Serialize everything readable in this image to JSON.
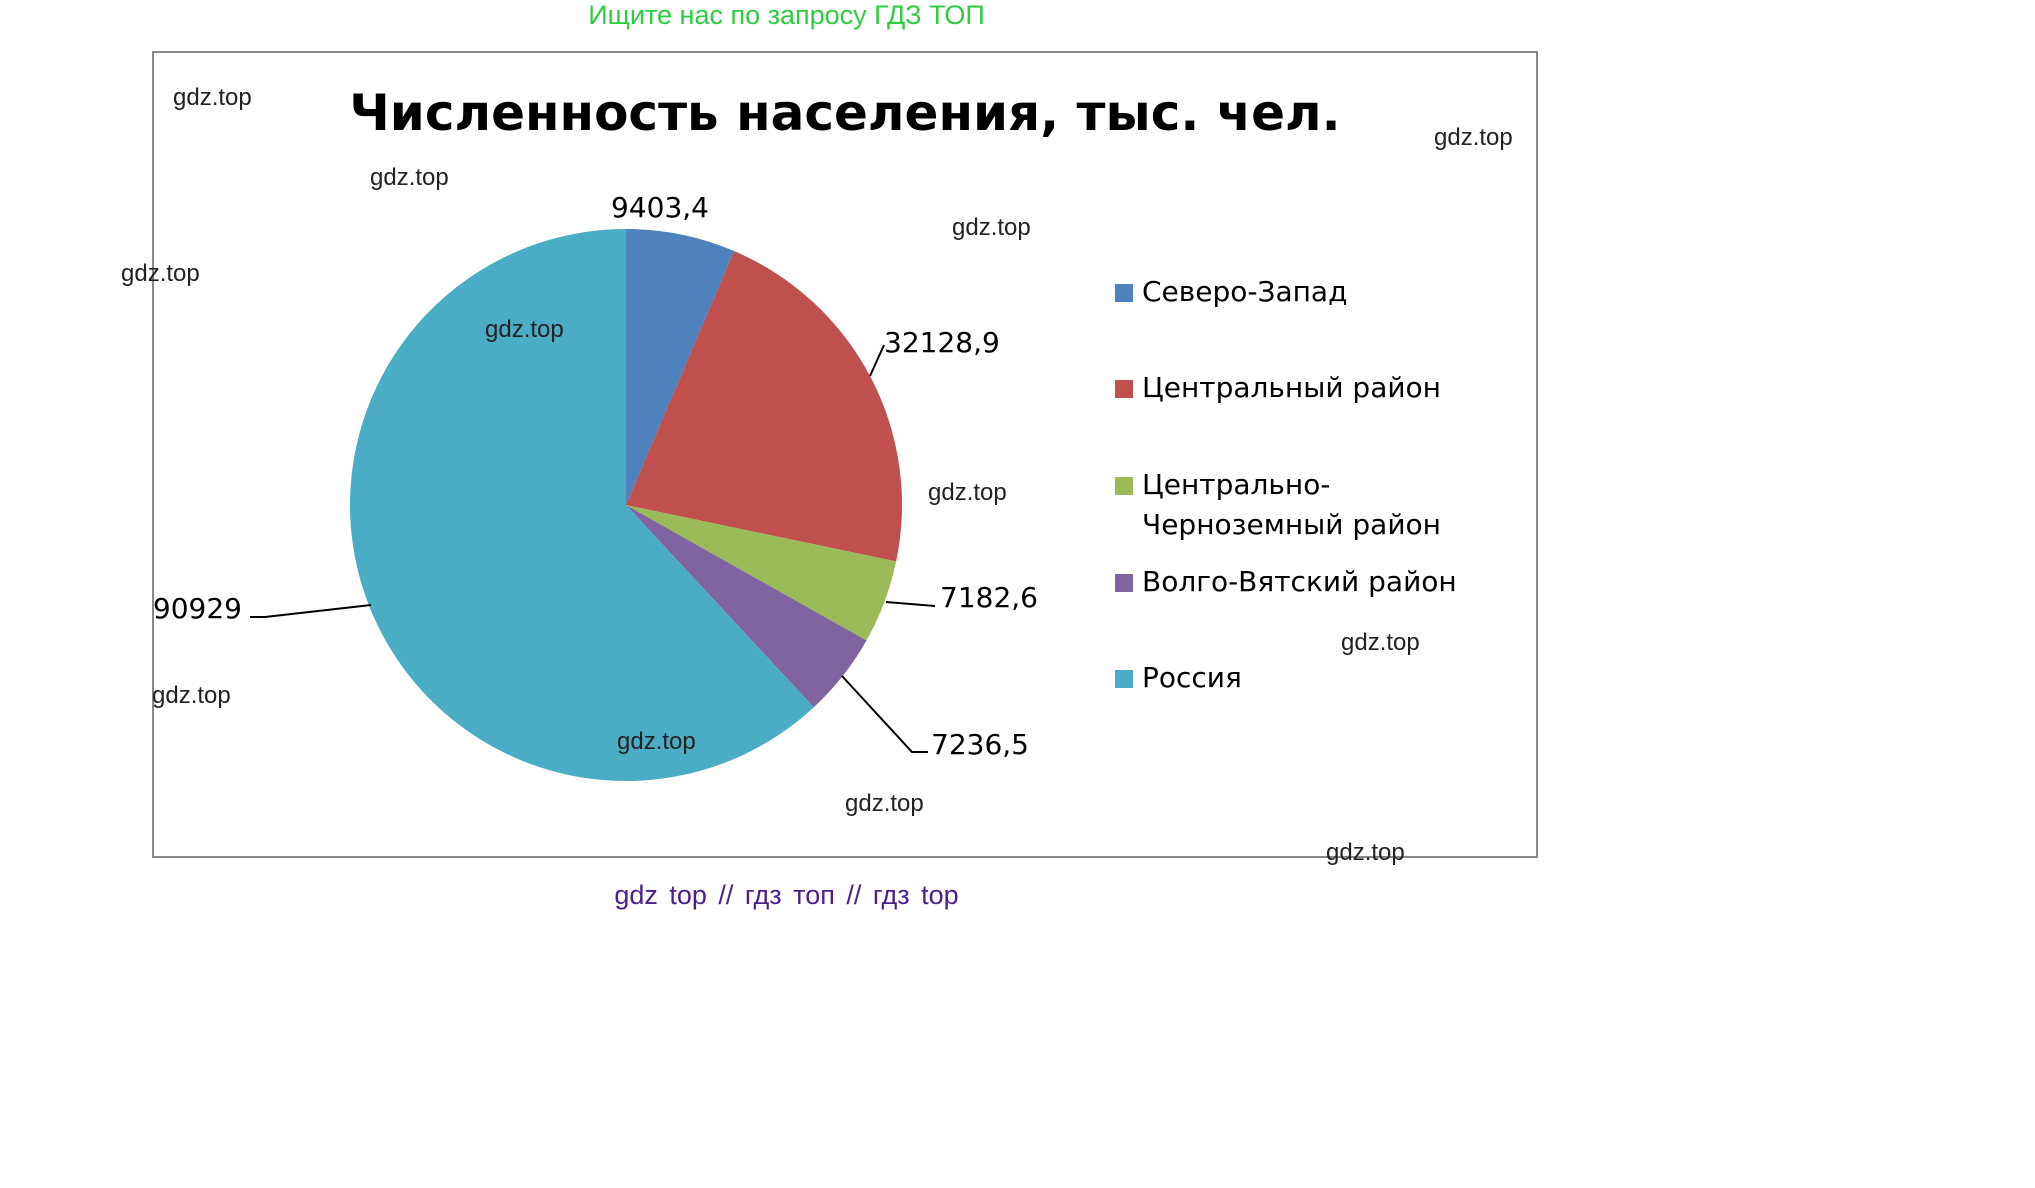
{
  "top_banner": "Ищите нас по запросу ГДЗ ТОП",
  "bottom_banner": "gdz top  //  гдз топ  //  гдз top",
  "watermark": "gdz.top",
  "chart_data": {
    "type": "pie",
    "title": "Численность населения, тыс. чел.",
    "legend_position": "right",
    "categories": [
      "Северо-Запад",
      "Центральный район",
      "Центрально-Черноземный район",
      "Волго-Вятский район",
      "Россия"
    ],
    "values": [
      9403.4,
      32128.9,
      7182.6,
      7236.5,
      90929
    ],
    "value_labels": [
      "9403,4",
      "32128,9",
      "7182,6",
      "7236,5",
      "90929"
    ],
    "colors": [
      "#4f81bd",
      "#c0504d",
      "#9bbb59",
      "#8064a2",
      "#4bacc6"
    ]
  }
}
